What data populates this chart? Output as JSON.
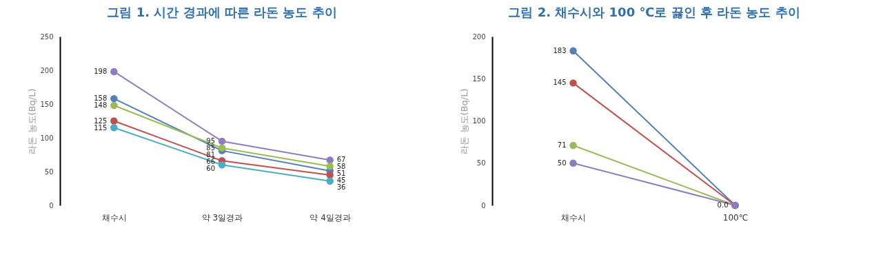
{
  "chart_data": [
    {
      "type": "line",
      "title": "그림 1. 시간 경과에 따른 라돈 농도 추이",
      "ylabel": "라돈 농도(Bq/L)",
      "categories": [
        "채수시",
        "약 3일경과",
        "약 4일경과"
      ],
      "ylim": [
        0,
        250
      ],
      "yticks": [
        0,
        50,
        100,
        150,
        200,
        250
      ],
      "grid": false,
      "marker": "circle",
      "line_style": "solid",
      "data_labels": true,
      "series": [
        {
          "color": "#8e7cc3",
          "values": [
            198,
            95,
            67
          ]
        },
        {
          "color": "#4f81bd",
          "values": [
            158,
            81,
            51
          ]
        },
        {
          "color": "#9bbb59",
          "values": [
            148,
            85,
            58
          ]
        },
        {
          "color": "#c0504d",
          "values": [
            125,
            66,
            45
          ]
        },
        {
          "color": "#4bacc6",
          "values": [
            115,
            60,
            36
          ]
        }
      ]
    },
    {
      "type": "line",
      "title": "그림 2. 채수시와 100 ℃로 끓인 후 라돈 농도 추이",
      "ylabel": "라돈 농도(Bq/L)",
      "categories": [
        "채수시",
        "100℃"
      ],
      "ylim": [
        0,
        200
      ],
      "yticks": [
        0,
        50,
        100,
        150,
        200
      ],
      "grid": false,
      "marker": "circle",
      "line_style": "solid",
      "series": [
        {
          "color": "#4f81bd",
          "values": [
            183,
            0
          ],
          "value_labels": [
            "183",
            null
          ]
        },
        {
          "color": "#c0504d",
          "values": [
            145,
            0
          ],
          "value_labels": [
            "145",
            null
          ]
        },
        {
          "color": "#9bbb59",
          "values": [
            71,
            0
          ],
          "value_labels": [
            "71",
            null
          ]
        },
        {
          "color": "#8e7cc3",
          "values": [
            50,
            0
          ],
          "value_labels": [
            "50",
            "0.0"
          ]
        }
      ]
    }
  ]
}
